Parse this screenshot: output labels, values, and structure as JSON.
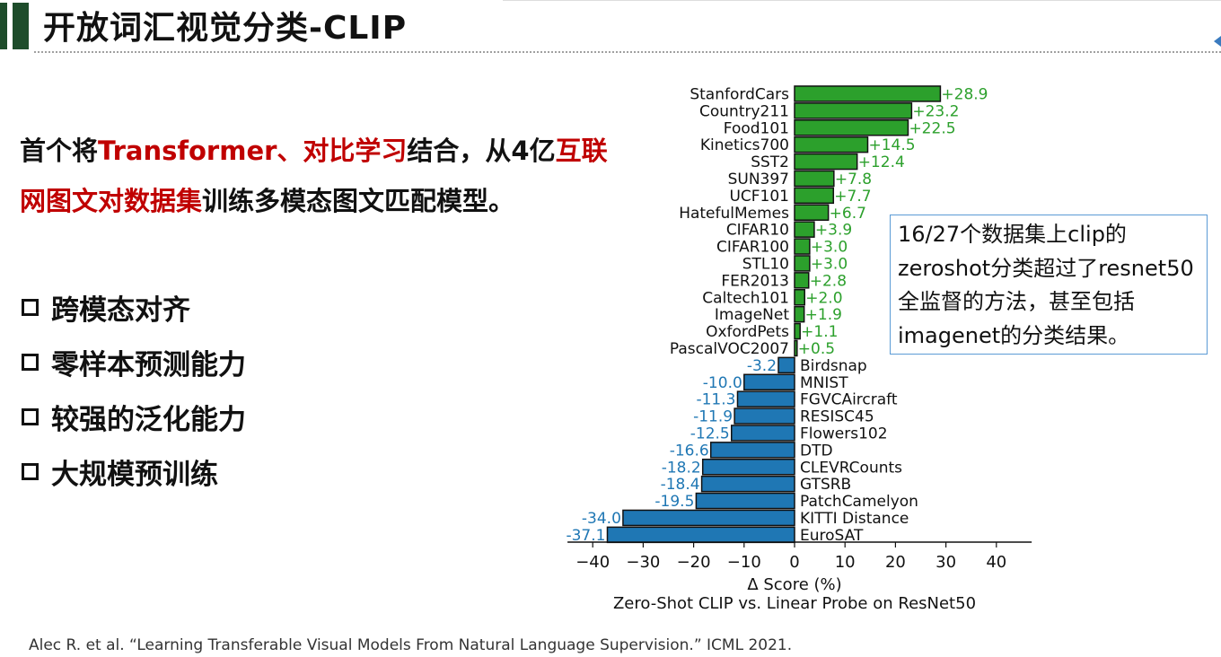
{
  "header": {
    "title": "开放词汇视觉分类-CLIP"
  },
  "intro": {
    "p1": "首个将",
    "h1": "Transformer、对比学习",
    "p2": "结合，从4亿",
    "h2": "互联",
    "h3": "网图文对数据集",
    "p3": "训练多模态图文匹配模型。"
  },
  "features": [
    "跨模态对齐",
    "零样本预测能力",
    "较强的泛化能力",
    "大规模预训练"
  ],
  "callout": {
    "text": "16/27个数据集上clip的zeroshot分类超过了resnet50全监督的方法，甚至包括imagenet的分类结果。"
  },
  "citation": "Alec R. et al.   “Learning Transferable Visual Models From Natural Language Supervision.”  ICML 2021.",
  "chart_data": {
    "type": "bar",
    "orientation": "horizontal",
    "categories": [
      "StanfordCars",
      "Country211",
      "Food101",
      "Kinetics700",
      "SST2",
      "SUN397",
      "UCF101",
      "HatefulMemes",
      "CIFAR10",
      "CIFAR100",
      "STL10",
      "FER2013",
      "Caltech101",
      "ImageNet",
      "OxfordPets",
      "PascalVOC2007",
      "Birdsnap",
      "MNIST",
      "FGVCAircraft",
      "RESISC45",
      "Flowers102",
      "DTD",
      "CLEVRCounts",
      "GTSRB",
      "PatchCamelyon",
      "KITTI Distance",
      "EuroSAT"
    ],
    "values": [
      28.9,
      23.2,
      22.5,
      14.5,
      12.4,
      7.8,
      7.7,
      6.7,
      3.9,
      3.0,
      3.0,
      2.8,
      2.0,
      1.9,
      1.1,
      0.5,
      -3.2,
      -10.0,
      -11.3,
      -11.9,
      -12.5,
      -16.6,
      -18.2,
      -18.4,
      -19.5,
      -34.0,
      -37.1
    ],
    "value_labels": [
      "+28.9",
      "+23.2",
      "+22.5",
      "+14.5",
      "+12.4",
      "+7.8",
      "+7.7",
      "+6.7",
      "+3.9",
      "+3.0",
      "+3.0",
      "+2.8",
      "+2.0",
      "+1.9",
      "+1.1",
      "+0.5",
      "-3.2",
      "-10.0",
      "-11.3",
      "-11.9",
      "-12.5",
      "-16.6",
      "-18.2",
      "-18.4",
      "-19.5",
      "-34.0",
      "-37.1"
    ],
    "xlabel": "Δ Score (%)",
    "subtitle": "Zero-Shot CLIP vs. Linear Probe on ResNet50",
    "xticks": [
      -40,
      -30,
      -20,
      -10,
      0,
      10,
      20,
      30,
      40
    ],
    "xtick_labels": [
      "−40",
      "−30",
      "−20",
      "−10",
      "0",
      "10",
      "20",
      "30",
      "40"
    ],
    "xlim": [
      -45,
      47
    ],
    "grid": false,
    "colors": {
      "positive": "#2ca02c",
      "negative": "#1f77b4",
      "edge": "#111111"
    }
  }
}
